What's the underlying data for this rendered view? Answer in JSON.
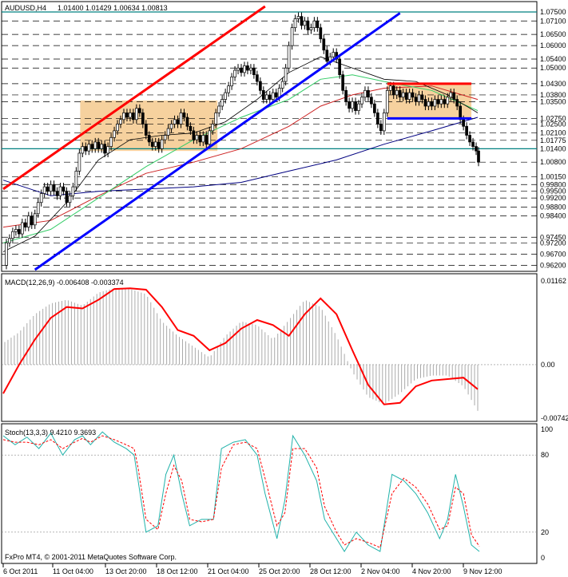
{
  "header": {
    "symbol_timeframe": "AUDUSD,H4",
    "ohlc": "1.01400 1.01429 1.00634 1.00813"
  },
  "footer": {
    "copyright": "FxPro MT4, © 2001-2011 MetaQuotes Software Corp."
  },
  "colors": {
    "red_channel": "#ff0000",
    "blue_trendline": "#0000ff",
    "orange_box": "#f5c98d",
    "ma_black": "#000000",
    "ma_green": "#33cc66",
    "ma_red": "#cc2222",
    "ma_navy": "#000080",
    "macd_signal": "#ff0000",
    "macd_hist": "#aaaaaa",
    "stoch_main": "#20b2aa",
    "stoch_signal": "#ff0000",
    "grid_dash": "#000000",
    "level_teal": "#008080"
  },
  "chart_data": [
    {
      "type": "candlestick",
      "panel": "price",
      "title": "AUDUSD,H4",
      "ylim": [
        0.96,
        1.0775
      ],
      "price_levels": [
        "1.07500",
        "1.07100",
        "1.06500",
        "1.06000",
        "1.05400",
        "1.05000",
        "1.04300",
        "1.03800",
        "1.03500",
        "1.02750",
        "1.02500",
        "1.02100",
        "1.01775",
        "1.01400",
        "1.00800",
        "1.00150",
        "0.99800",
        "0.99500",
        "0.99200",
        "0.98800",
        "0.98400",
        "0.97450",
        "0.97200",
        "0.96700",
        "0.96200"
      ],
      "highlighted_levels": [
        "1.07500",
        "1.01400"
      ],
      "close_path": [
        [
          0,
          0.962
        ],
        [
          4,
          0.972
        ],
        [
          8,
          0.974
        ],
        [
          12,
          0.977
        ],
        [
          16,
          0.978
        ],
        [
          20,
          0.976
        ],
        [
          24,
          0.981
        ],
        [
          28,
          0.979
        ],
        [
          32,
          0.984
        ],
        [
          36,
          0.98
        ],
        [
          40,
          0.985
        ],
        [
          44,
          0.99
        ],
        [
          48,
          0.994
        ],
        [
          52,
          0.997
        ],
        [
          56,
          0.995
        ],
        [
          60,
          0.998
        ],
        [
          64,
          0.995
        ],
        [
          68,
          0.993
        ],
        [
          72,
          0.997
        ],
        [
          76,
          0.995
        ],
        [
          80,
          0.99
        ],
        [
          84,
          0.993
        ],
        [
          88,
          0.997
        ],
        [
          92,
          1.004
        ],
        [
          96,
          1.012
        ],
        [
          100,
          1.015
        ],
        [
          104,
          1.013
        ],
        [
          108,
          1.016
        ],
        [
          112,
          1.014
        ],
        [
          116,
          1.017
        ],
        [
          120,
          1.014
        ],
        [
          124,
          1.016
        ],
        [
          128,
          1.012
        ],
        [
          132,
          1.015
        ],
        [
          136,
          1.019
        ],
        [
          140,
          1.022
        ],
        [
          144,
          1.025
        ],
        [
          148,
          1.027
        ],
        [
          152,
          1.03
        ],
        [
          156,
          1.028
        ],
        [
          160,
          1.03
        ],
        [
          164,
          1.027
        ],
        [
          168,
          1.032
        ],
        [
          172,
          1.03
        ],
        [
          176,
          1.025
        ],
        [
          180,
          1.02
        ],
        [
          184,
          1.017
        ],
        [
          188,
          1.015
        ],
        [
          192,
          1.017
        ],
        [
          196,
          1.014
        ],
        [
          200,
          1.018
        ],
        [
          204,
          1.02
        ],
        [
          208,
          1.023
        ],
        [
          212,
          1.025
        ],
        [
          216,
          1.027
        ],
        [
          220,
          1.025
        ],
        [
          224,
          1.03
        ],
        [
          228,
          1.028
        ],
        [
          232,
          1.024
        ],
        [
          236,
          1.022
        ],
        [
          240,
          1.018
        ],
        [
          244,
          1.02
        ],
        [
          248,
          1.017
        ],
        [
          252,
          1.02
        ],
        [
          256,
          1.016
        ],
        [
          260,
          1.022
        ],
        [
          264,
          1.025
        ],
        [
          268,
          1.03
        ],
        [
          272,
          1.033
        ],
        [
          276,
          1.036
        ],
        [
          280,
          1.039
        ],
        [
          284,
          1.042
        ],
        [
          288,
          1.046
        ],
        [
          292,
          1.049
        ],
        [
          296,
          1.05
        ],
        [
          300,
          1.048
        ],
        [
          304,
          1.051
        ],
        [
          308,
          1.049
        ],
        [
          312,
          1.05
        ],
        [
          316,
          1.047
        ],
        [
          320,
          1.044
        ],
        [
          324,
          1.04
        ],
        [
          328,
          1.036
        ],
        [
          332,
          1.038
        ],
        [
          336,
          1.036
        ],
        [
          340,
          1.039
        ],
        [
          344,
          1.037
        ],
        [
          348,
          1.041
        ],
        [
          352,
          1.044
        ],
        [
          356,
          1.05
        ],
        [
          360,
          1.06
        ],
        [
          364,
          1.068
        ],
        [
          368,
          1.072
        ],
        [
          372,
          1.073
        ],
        [
          376,
          1.069
        ],
        [
          380,
          1.071
        ],
        [
          384,
          1.067
        ],
        [
          388,
          1.068
        ],
        [
          392,
          1.071
        ],
        [
          396,
          1.068
        ],
        [
          400,
          1.063
        ],
        [
          404,
          1.058
        ],
        [
          408,
          1.053
        ],
        [
          412,
          1.055
        ],
        [
          416,
          1.057
        ],
        [
          420,
          1.054
        ],
        [
          424,
          1.047
        ],
        [
          428,
          1.04
        ],
        [
          432,
          1.035
        ],
        [
          436,
          1.032
        ],
        [
          440,
          1.035
        ],
        [
          444,
          1.031
        ],
        [
          448,
          1.034
        ],
        [
          452,
          1.037
        ],
        [
          456,
          1.04
        ],
        [
          460,
          1.037
        ],
        [
          464,
          1.034
        ],
        [
          468,
          1.03
        ],
        [
          472,
          1.025
        ],
        [
          476,
          1.022
        ],
        [
          480,
          1.03
        ],
        [
          484,
          1.04
        ],
        [
          488,
          1.042
        ],
        [
          492,
          1.038
        ],
        [
          496,
          1.04
        ],
        [
          500,
          1.037
        ],
        [
          504,
          1.039
        ],
        [
          508,
          1.036
        ],
        [
          512,
          1.039
        ],
        [
          516,
          1.037
        ],
        [
          520,
          1.035
        ],
        [
          524,
          1.038
        ],
        [
          528,
          1.036
        ],
        [
          532,
          1.033
        ],
        [
          536,
          1.035
        ],
        [
          540,
          1.033
        ],
        [
          544,
          1.036
        ],
        [
          548,
          1.034
        ],
        [
          552,
          1.036
        ],
        [
          556,
          1.034
        ],
        [
          560,
          1.037
        ],
        [
          564,
          1.039
        ],
        [
          568,
          1.036
        ],
        [
          572,
          1.033
        ],
        [
          576,
          1.027
        ],
        [
          580,
          1.024
        ],
        [
          584,
          1.02
        ],
        [
          588,
          1.017
        ],
        [
          592,
          1.015
        ],
        [
          596,
          1.013
        ],
        [
          599,
          1.008
        ]
      ],
      "red_box_top": 1.043,
      "blue_box_bottom": 1.0275
    },
    {
      "type": "line",
      "panel": "macd",
      "title": "MACD(12,26,9) -0.006408 -0.003374",
      "ylim": [
        -0.00742,
        0.01162
      ],
      "y_ticks": [
        "0.01162",
        "0.00",
        "-0.00742"
      ],
      "signal": [
        [
          0,
          -0.004
        ],
        [
          20,
          0.0
        ],
        [
          40,
          0.0035
        ],
        [
          60,
          0.0065
        ],
        [
          80,
          0.008
        ],
        [
          100,
          0.0078
        ],
        [
          120,
          0.009
        ],
        [
          140,
          0.0105
        ],
        [
          160,
          0.0106
        ],
        [
          180,
          0.0104
        ],
        [
          200,
          0.008
        ],
        [
          220,
          0.0048
        ],
        [
          240,
          0.004
        ],
        [
          260,
          0.002
        ],
        [
          280,
          0.003
        ],
        [
          300,
          0.005
        ],
        [
          320,
          0.0062
        ],
        [
          340,
          0.0055
        ],
        [
          360,
          0.004
        ],
        [
          380,
          0.007
        ],
        [
          400,
          0.0092
        ],
        [
          420,
          0.007
        ],
        [
          440,
          0.002
        ],
        [
          460,
          -0.0028
        ],
        [
          480,
          -0.0055
        ],
        [
          500,
          -0.0053
        ],
        [
          520,
          -0.003
        ],
        [
          540,
          -0.0022
        ],
        [
          560,
          -0.002
        ],
        [
          580,
          -0.0018
        ],
        [
          598,
          -0.0034
        ]
      ],
      "histogram_main": [
        [
          0,
          0.003
        ],
        [
          20,
          0.0045
        ],
        [
          40,
          0.007
        ],
        [
          60,
          0.0085
        ],
        [
          80,
          0.009
        ],
        [
          100,
          0.0082
        ],
        [
          120,
          0.01
        ],
        [
          140,
          0.0106
        ],
        [
          160,
          0.0105
        ],
        [
          180,
          0.0098
        ],
        [
          200,
          0.006
        ],
        [
          220,
          0.004
        ],
        [
          240,
          0.0025
        ],
        [
          260,
          0.001
        ],
        [
          280,
          0.004
        ],
        [
          300,
          0.006
        ],
        [
          320,
          0.0055
        ],
        [
          340,
          0.0035
        ],
        [
          360,
          0.0062
        ],
        [
          380,
          0.009
        ],
        [
          400,
          0.008
        ],
        [
          420,
          0.004
        ],
        [
          440,
          -0.001
        ],
        [
          460,
          -0.0045
        ],
        [
          480,
          -0.0055
        ],
        [
          500,
          -0.004
        ],
        [
          520,
          -0.002
        ],
        [
          540,
          -0.0015
        ],
        [
          560,
          -0.0015
        ],
        [
          580,
          -0.003
        ],
        [
          598,
          -0.0064
        ]
      ]
    },
    {
      "type": "line",
      "panel": "stochastic",
      "title": "Stoch(13,3,3) 9.4210 9.3693",
      "ylim": [
        0,
        100
      ],
      "y_ticks": [
        "100",
        "80",
        "20",
        "0"
      ],
      "main": [
        [
          0,
          95
        ],
        [
          15,
          88
        ],
        [
          30,
          94
        ],
        [
          45,
          85
        ],
        [
          60,
          97
        ],
        [
          75,
          80
        ],
        [
          90,
          92
        ],
        [
          100,
          95
        ],
        [
          110,
          88
        ],
        [
          125,
          98
        ],
        [
          140,
          90
        ],
        [
          155,
          85
        ],
        [
          165,
          80
        ],
        [
          170,
          60
        ],
        [
          180,
          20
        ],
        [
          195,
          25
        ],
        [
          205,
          65
        ],
        [
          215,
          80
        ],
        [
          225,
          50
        ],
        [
          235,
          25
        ],
        [
          250,
          30
        ],
        [
          265,
          30
        ],
        [
          275,
          85
        ],
        [
          290,
          90
        ],
        [
          305,
          92
        ],
        [
          320,
          80
        ],
        [
          330,
          50
        ],
        [
          345,
          15
        ],
        [
          355,
          45
        ],
        [
          365,
          95
        ],
        [
          380,
          80
        ],
        [
          395,
          60
        ],
        [
          405,
          30
        ],
        [
          420,
          15
        ],
        [
          430,
          5
        ],
        [
          445,
          20
        ],
        [
          460,
          10
        ],
        [
          475,
          5
        ],
        [
          490,
          65
        ],
        [
          505,
          60
        ],
        [
          520,
          50
        ],
        [
          535,
          35
        ],
        [
          550,
          15
        ],
        [
          560,
          30
        ],
        [
          570,
          65
        ],
        [
          580,
          40
        ],
        [
          590,
          10
        ],
        [
          600,
          5
        ]
      ],
      "signal": [
        [
          0,
          92
        ],
        [
          15,
          90
        ],
        [
          30,
          90
        ],
        [
          45,
          88
        ],
        [
          60,
          92
        ],
        [
          75,
          85
        ],
        [
          90,
          90
        ],
        [
          100,
          93
        ],
        [
          110,
          90
        ],
        [
          125,
          95
        ],
        [
          140,
          92
        ],
        [
          155,
          88
        ],
        [
          165,
          85
        ],
        [
          170,
          70
        ],
        [
          180,
          30
        ],
        [
          195,
          22
        ],
        [
          205,
          50
        ],
        [
          215,
          72
        ],
        [
          225,
          60
        ],
        [
          235,
          30
        ],
        [
          250,
          28
        ],
        [
          265,
          30
        ],
        [
          275,
          70
        ],
        [
          290,
          88
        ],
        [
          305,
          90
        ],
        [
          320,
          85
        ],
        [
          330,
          62
        ],
        [
          345,
          25
        ],
        [
          355,
          35
        ],
        [
          365,
          85
        ],
        [
          380,
          85
        ],
        [
          395,
          70
        ],
        [
          405,
          40
        ],
        [
          420,
          20
        ],
        [
          430,
          10
        ],
        [
          445,
          15
        ],
        [
          460,
          12
        ],
        [
          475,
          8
        ],
        [
          490,
          50
        ],
        [
          505,
          62
        ],
        [
          520,
          55
        ],
        [
          535,
          42
        ],
        [
          550,
          22
        ],
        [
          560,
          25
        ],
        [
          570,
          55
        ],
        [
          580,
          50
        ],
        [
          590,
          18
        ],
        [
          600,
          9
        ]
      ]
    }
  ],
  "x_axis": {
    "labels": [
      "6 Oct 2011",
      "11 Oct 04:00",
      "13 Oct 20:00",
      "18 Oct 12:00",
      "21 Oct 04:00",
      "25 Oct 20:00",
      "28 Oct 12:00",
      "2 Nov 04:00",
      "4 Nov 20:00",
      "9 Nov 12:00"
    ]
  }
}
